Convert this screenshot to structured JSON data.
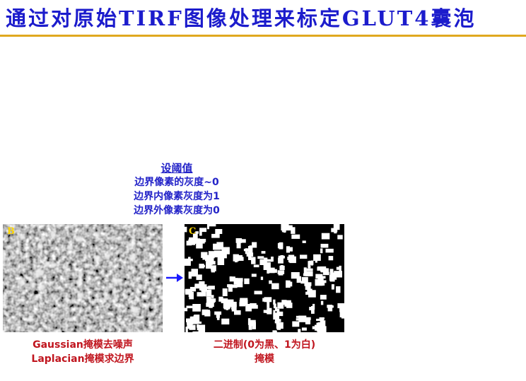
{
  "slide": {
    "title": "通过对原始TIRF图像处理来标定GLUT4囊泡"
  },
  "threshold": {
    "heading": "设阈值",
    "lines": [
      "边界像素的灰度~0",
      "边界内像素灰度为1",
      "边界外像素灰度为0"
    ]
  },
  "panels": {
    "filtered": {
      "letter": "B",
      "caption_lines": [
        "Gaussian掩模去噪声",
        "Laplacian掩模求边界"
      ]
    },
    "binary": {
      "letter": "C",
      "caption_lines": [
        "二进制(0为黑、1为白)",
        "掩模"
      ]
    }
  },
  "colors": {
    "title": "#1c1ccc",
    "title_rule": "#e0a81f",
    "threshold_text": "#2323c8",
    "caption_text": "#c0151e",
    "panel_letter": "#ffd700",
    "arrow": "#1a1aff"
  },
  "icons": {
    "arrow": "right-arrow-icon"
  }
}
